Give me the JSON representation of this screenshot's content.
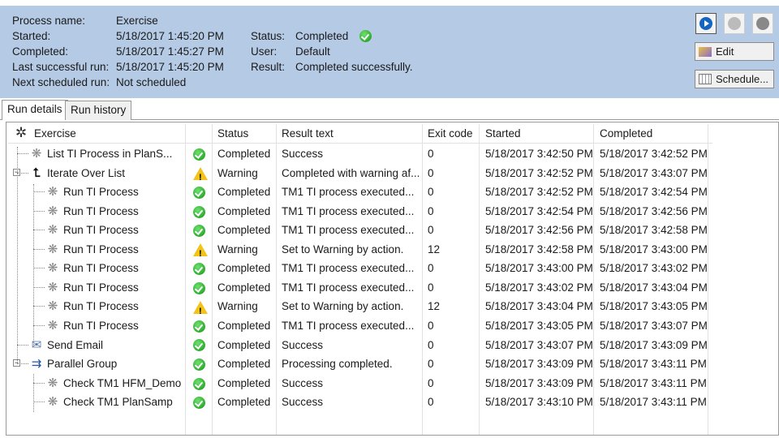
{
  "header": {
    "fields": [
      {
        "label": "Process name:",
        "value": "Exercise"
      },
      {
        "label": "Started:",
        "value": "5/18/2017 1:45:20 PM"
      },
      {
        "label": "Completed:",
        "value": "5/18/2017 1:45:27 PM"
      },
      {
        "label": "Last successful run:",
        "value": "5/18/2017 1:45:20 PM"
      },
      {
        "label": "Next scheduled run:",
        "value": "Not scheduled"
      }
    ],
    "status_label": "Status:",
    "status_value": "Completed",
    "user_label": "User:",
    "user_value": "Default",
    "result_label": "Result:",
    "result_value": "Completed successfully.",
    "edit_label": "Edit",
    "schedule_label": "Schedule..."
  },
  "tabs": [
    {
      "label": "Run details"
    },
    {
      "label": "Run history"
    }
  ],
  "grid": {
    "root": "Exercise",
    "columns": [
      "Status",
      "Result text",
      "Exit code",
      "Started",
      "Completed"
    ],
    "rows": [
      {
        "name": "List TI Process in PlanS...",
        "level": 1,
        "icon": "process-icon",
        "state": "ok",
        "status": "Completed",
        "result": "Success",
        "exit": "0",
        "started": "5/18/2017 3:42:50 PM",
        "completed": "5/18/2017 3:42:52 PM"
      },
      {
        "name": "Iterate Over List",
        "level": 1,
        "icon": "iterate-icon",
        "expand": true,
        "state": "warn",
        "status": "Warning",
        "result": "Completed with warning af...",
        "exit": "0",
        "started": "5/18/2017 3:42:52 PM",
        "completed": "5/18/2017 3:43:07 PM"
      },
      {
        "name": "Run TI Process",
        "level": 2,
        "icon": "process-icon",
        "state": "ok",
        "status": "Completed",
        "result": "TM1 TI process executed...",
        "exit": "0",
        "started": "5/18/2017 3:42:52 PM",
        "completed": "5/18/2017 3:42:54 PM"
      },
      {
        "name": "Run TI Process",
        "level": 2,
        "icon": "process-icon",
        "state": "ok",
        "status": "Completed",
        "result": "TM1 TI process executed...",
        "exit": "0",
        "started": "5/18/2017 3:42:54 PM",
        "completed": "5/18/2017 3:42:56 PM"
      },
      {
        "name": "Run TI Process",
        "level": 2,
        "icon": "process-icon",
        "state": "ok",
        "status": "Completed",
        "result": "TM1 TI process executed...",
        "exit": "0",
        "started": "5/18/2017 3:42:56 PM",
        "completed": "5/18/2017 3:42:58 PM"
      },
      {
        "name": "Run TI Process",
        "level": 2,
        "icon": "process-icon",
        "state": "warn",
        "status": "Warning",
        "result": "Set to Warning by action.",
        "exit": "12",
        "started": "5/18/2017 3:42:58 PM",
        "completed": "5/18/2017 3:43:00 PM"
      },
      {
        "name": "Run TI Process",
        "level": 2,
        "icon": "process-icon",
        "state": "ok",
        "status": "Completed",
        "result": "TM1 TI process executed...",
        "exit": "0",
        "started": "5/18/2017 3:43:00 PM",
        "completed": "5/18/2017 3:43:02 PM"
      },
      {
        "name": "Run TI Process",
        "level": 2,
        "icon": "process-icon",
        "state": "ok",
        "status": "Completed",
        "result": "TM1 TI process executed...",
        "exit": "0",
        "started": "5/18/2017 3:43:02 PM",
        "completed": "5/18/2017 3:43:04 PM"
      },
      {
        "name": "Run TI Process",
        "level": 2,
        "icon": "process-icon",
        "state": "warn",
        "status": "Warning",
        "result": "Set to Warning by action.",
        "exit": "12",
        "started": "5/18/2017 3:43:04 PM",
        "completed": "5/18/2017 3:43:05 PM"
      },
      {
        "name": "Run TI Process",
        "level": 2,
        "icon": "process-icon",
        "state": "ok",
        "status": "Completed",
        "result": "TM1 TI process executed...",
        "exit": "0",
        "started": "5/18/2017 3:43:05 PM",
        "completed": "5/18/2017 3:43:07 PM"
      },
      {
        "name": "Send Email",
        "level": 1,
        "icon": "email-icon",
        "state": "ok",
        "status": "Completed",
        "result": "Success",
        "exit": "0",
        "started": "5/18/2017 3:43:07 PM",
        "completed": "5/18/2017 3:43:09 PM"
      },
      {
        "name": "Parallel Group",
        "level": 1,
        "icon": "parallel-icon",
        "expand": true,
        "state": "ok",
        "status": "Completed",
        "result": "Processing completed.",
        "exit": "0",
        "started": "5/18/2017 3:43:09 PM",
        "completed": "5/18/2017 3:43:11 PM"
      },
      {
        "name": "Check TM1 HFM_Demo",
        "level": 2,
        "icon": "process-icon",
        "state": "ok",
        "status": "Completed",
        "result": "Success",
        "exit": "0",
        "started": "5/18/2017 3:43:09 PM",
        "completed": "5/18/2017 3:43:11 PM"
      },
      {
        "name": "Check TM1 PlanSamp",
        "level": 2,
        "icon": "process-icon",
        "state": "ok",
        "status": "Completed",
        "result": "Success",
        "exit": "0",
        "started": "5/18/2017 3:43:10 PM",
        "completed": "5/18/2017 3:43:11 PM"
      }
    ]
  }
}
